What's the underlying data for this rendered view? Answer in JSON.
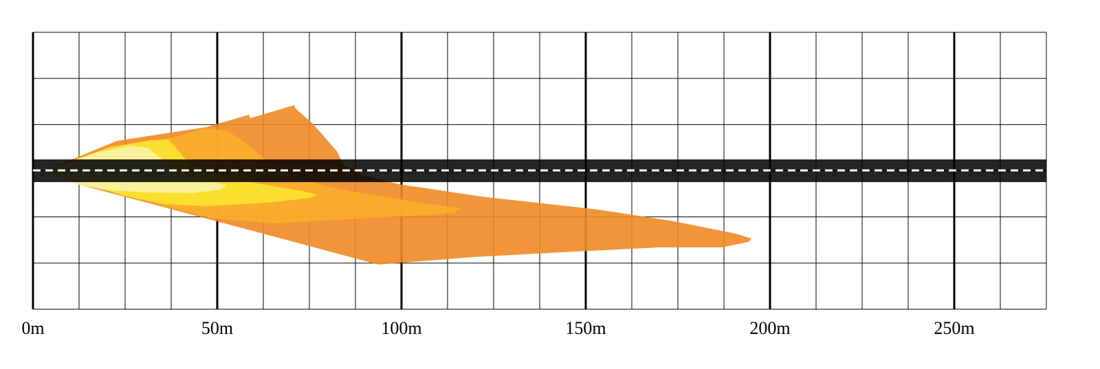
{
  "chart_data": {
    "type": "area",
    "xlabel": "",
    "ylabel": "",
    "xlim": [
      0,
      275
    ],
    "x_unit": "m",
    "x_ticks": [
      {
        "value": 0,
        "label": "0m"
      },
      {
        "value": 50,
        "label": "50m"
      },
      {
        "value": 100,
        "label": "100m"
      },
      {
        "value": 150,
        "label": "150m"
      },
      {
        "value": 200,
        "label": "200m"
      },
      {
        "value": 250,
        "label": "250m"
      }
    ],
    "x_minor_step": 12.5,
    "y_major_lines": 6,
    "grid": true,
    "road": {
      "color": "#000000",
      "centerline_color": "#ffffff",
      "centerline_dashed": true
    },
    "series": [
      {
        "fill": "#ef8a25",
        "max_reach": 195
      },
      {
        "fill": "#fbb02a",
        "max_reach": 116
      },
      {
        "fill": "#fae42f",
        "max_reach": 77
      },
      {
        "fill": "#f6f4a6",
        "max_reach": 52
      }
    ]
  }
}
